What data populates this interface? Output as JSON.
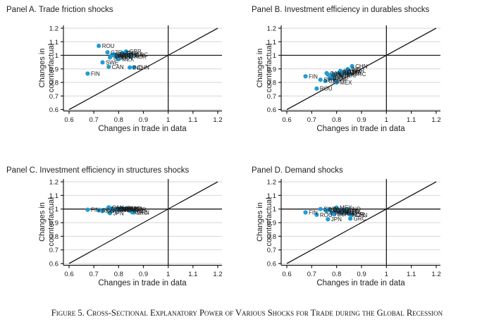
{
  "figure_caption": "Figure 5. Cross-Sectional Explanatory Power of Various Shocks for Trade during the Global Recession",
  "axis_labels": {
    "xlabel": "Changes in trade in data",
    "ylabel_line1": "Changes in",
    "ylabel_line2": "counterfactual"
  },
  "colors": {
    "marker": "#239CD3",
    "grid": "#d6d6d6",
    "axis": "#1a1a1a"
  },
  "chart_data": [
    {
      "type": "scatter",
      "title": "Panel A. Trade friction shocks",
      "xlabel": "Changes in trade in data",
      "ylabel": "Changes in counterfactual",
      "xlim": [
        0.6,
        1.2
      ],
      "ylim": [
        0.6,
        1.2
      ],
      "xticks": [
        0.6,
        0.7,
        0.8,
        0.9,
        1,
        1.1,
        1.2
      ],
      "yticks": [
        0.6,
        0.7,
        0.8,
        0.9,
        1,
        1.1,
        1.2
      ],
      "reference_lines": {
        "horizontal_y": 1,
        "vertical_x": 1,
        "diagonal": "45-degree"
      },
      "points": [
        {
          "label": "FIN",
          "x": 0.675,
          "y": 0.865
        },
        {
          "label": "ROU",
          "x": 0.72,
          "y": 1.07
        },
        {
          "label": "SWE",
          "x": 0.735,
          "y": 0.948
        },
        {
          "label": "CZE",
          "x": 0.755,
          "y": 1.022
        },
        {
          "label": "CAN",
          "x": 0.76,
          "y": 0.915
        },
        {
          "label": "JPN",
          "x": 0.765,
          "y": 0.985
        },
        {
          "label": "DNK",
          "x": 0.772,
          "y": 1.0
        },
        {
          "label": "ITA",
          "x": 0.78,
          "y": 1.008
        },
        {
          "label": "HUN",
          "x": 0.785,
          "y": 0.995
        },
        {
          "label": "ESP",
          "x": 0.79,
          "y": 1.002
        },
        {
          "label": "FRA",
          "x": 0.795,
          "y": 0.982
        },
        {
          "label": "MEX",
          "x": 0.8,
          "y": 0.972
        },
        {
          "label": "DEU",
          "x": 0.81,
          "y": 1.0
        },
        {
          "label": "IRL",
          "x": 0.815,
          "y": 1.018
        },
        {
          "label": "POL",
          "x": 0.82,
          "y": 1.012
        },
        {
          "label": "AUT",
          "x": 0.825,
          "y": 1.0
        },
        {
          "label": "GBR",
          "x": 0.83,
          "y": 1.028
        },
        {
          "label": "USA",
          "x": 0.84,
          "y": 1.0
        },
        {
          "label": "IND",
          "x": 0.845,
          "y": 0.91
        },
        {
          "label": "KOR",
          "x": 0.85,
          "y": 0.99
        },
        {
          "label": "GRC",
          "x": 0.855,
          "y": 1.005
        },
        {
          "label": "CHN",
          "x": 0.862,
          "y": 0.912
        }
      ]
    },
    {
      "type": "scatter",
      "title": "Panel B. Investment efficiency in durables shocks",
      "xlabel": "Changes in trade in data",
      "ylabel": "Changes in counterfactual",
      "xlim": [
        0.6,
        1.2
      ],
      "ylim": [
        0.6,
        1.2
      ],
      "xticks": [
        0.6,
        0.7,
        0.8,
        0.9,
        1,
        1.1,
        1.2
      ],
      "yticks": [
        0.6,
        0.7,
        0.8,
        0.9,
        1,
        1.1,
        1.2
      ],
      "reference_lines": {
        "horizontal_y": 1,
        "vertical_x": 1,
        "diagonal": "45-degree"
      },
      "points": [
        {
          "label": "FIN",
          "x": 0.675,
          "y": 0.845
        },
        {
          "label": "ROU",
          "x": 0.72,
          "y": 0.755
        },
        {
          "label": "SWE",
          "x": 0.735,
          "y": 0.82
        },
        {
          "label": "CZE",
          "x": 0.755,
          "y": 0.81
        },
        {
          "label": "CAN",
          "x": 0.76,
          "y": 0.868
        },
        {
          "label": "JPN",
          "x": 0.765,
          "y": 0.858
        },
        {
          "label": "DNK",
          "x": 0.772,
          "y": 0.83
        },
        {
          "label": "ITA",
          "x": 0.78,
          "y": 0.842
        },
        {
          "label": "HUN",
          "x": 0.785,
          "y": 0.862
        },
        {
          "label": "ESP",
          "x": 0.79,
          "y": 0.825
        },
        {
          "label": "FRA",
          "x": 0.795,
          "y": 0.85
        },
        {
          "label": "MEX",
          "x": 0.8,
          "y": 0.8
        },
        {
          "label": "DEU",
          "x": 0.81,
          "y": 0.872
        },
        {
          "label": "IRL",
          "x": 0.815,
          "y": 0.885
        },
        {
          "label": "POL",
          "x": 0.82,
          "y": 0.855
        },
        {
          "label": "AUT",
          "x": 0.825,
          "y": 0.868
        },
        {
          "label": "GBR",
          "x": 0.83,
          "y": 0.878
        },
        {
          "label": "USA",
          "x": 0.84,
          "y": 0.875
        },
        {
          "label": "IND",
          "x": 0.845,
          "y": 0.898
        },
        {
          "label": "KOR",
          "x": 0.85,
          "y": 0.888
        },
        {
          "label": "GRC",
          "x": 0.855,
          "y": 0.862
        },
        {
          "label": "CHN",
          "x": 0.862,
          "y": 0.92
        }
      ]
    },
    {
      "type": "scatter",
      "title": "Panel C. Investment efficiency in structures shocks",
      "xlabel": "Changes in trade in data",
      "ylabel": "Changes in counterfactual",
      "xlim": [
        0.6,
        1.2
      ],
      "ylim": [
        0.6,
        1.2
      ],
      "xticks": [
        0.6,
        0.7,
        0.8,
        0.9,
        1,
        1.1,
        1.2
      ],
      "yticks": [
        0.6,
        0.7,
        0.8,
        0.9,
        1,
        1.1,
        1.2
      ],
      "reference_lines": {
        "horizontal_y": 1,
        "vertical_x": 1,
        "diagonal": "45-degree"
      },
      "points": [
        {
          "label": "FIN",
          "x": 0.675,
          "y": 0.995
        },
        {
          "label": "ROU",
          "x": 0.72,
          "y": 0.99
        },
        {
          "label": "SWE",
          "x": 0.735,
          "y": 0.985
        },
        {
          "label": "CZE",
          "x": 0.755,
          "y": 1.0
        },
        {
          "label": "CAN",
          "x": 0.76,
          "y": 1.012
        },
        {
          "label": "JPN",
          "x": 0.765,
          "y": 0.97
        },
        {
          "label": "DNK",
          "x": 0.772,
          "y": 1.002
        },
        {
          "label": "ITA",
          "x": 0.78,
          "y": 0.995
        },
        {
          "label": "HUN",
          "x": 0.785,
          "y": 1.0
        },
        {
          "label": "ESP",
          "x": 0.79,
          "y": 0.998
        },
        {
          "label": "FRA",
          "x": 0.795,
          "y": 1.0
        },
        {
          "label": "MEX",
          "x": 0.8,
          "y": 0.993
        },
        {
          "label": "DEU",
          "x": 0.81,
          "y": 1.0
        },
        {
          "label": "IRL",
          "x": 0.815,
          "y": 1.005
        },
        {
          "label": "POL",
          "x": 0.82,
          "y": 1.0
        },
        {
          "label": "AUT",
          "x": 0.825,
          "y": 0.998
        },
        {
          "label": "GBR",
          "x": 0.83,
          "y": 1.004
        },
        {
          "label": "USA",
          "x": 0.84,
          "y": 1.0
        },
        {
          "label": "IND",
          "x": 0.845,
          "y": 0.988
        },
        {
          "label": "KOR",
          "x": 0.85,
          "y": 0.995
        },
        {
          "label": "GRC",
          "x": 0.855,
          "y": 0.976
        },
        {
          "label": "CHN",
          "x": 0.862,
          "y": 0.975
        }
      ]
    },
    {
      "type": "scatter",
      "title": "Panel D. Demand shocks",
      "xlabel": "Changes in trade in data",
      "ylabel": "Changes in counterfactual",
      "xlim": [
        0.6,
        1.2
      ],
      "ylim": [
        0.6,
        1.2
      ],
      "xticks": [
        0.6,
        0.7,
        0.8,
        0.9,
        1,
        1.1,
        1.2
      ],
      "yticks": [
        0.6,
        0.7,
        0.8,
        0.9,
        1,
        1.1,
        1.2
      ],
      "reference_lines": {
        "horizontal_y": 1,
        "vertical_x": 1,
        "diagonal": "45-degree"
      },
      "points": [
        {
          "label": "FIN",
          "x": 0.675,
          "y": 0.975
        },
        {
          "label": "ROU",
          "x": 0.72,
          "y": 0.958
        },
        {
          "label": "SWE",
          "x": 0.735,
          "y": 1.0
        },
        {
          "label": "CZE",
          "x": 0.755,
          "y": 0.993
        },
        {
          "label": "CAN",
          "x": 0.76,
          "y": 0.985
        },
        {
          "label": "JPN",
          "x": 0.765,
          "y": 0.925
        },
        {
          "label": "DNK",
          "x": 0.772,
          "y": 0.998
        },
        {
          "label": "ITA",
          "x": 0.78,
          "y": 0.968
        },
        {
          "label": "HUN",
          "x": 0.785,
          "y": 0.975
        },
        {
          "label": "ESP",
          "x": 0.79,
          "y": 0.962
        },
        {
          "label": "FRA",
          "x": 0.795,
          "y": 0.985
        },
        {
          "label": "MEX",
          "x": 0.8,
          "y": 1.01
        },
        {
          "label": "DEU",
          "x": 0.81,
          "y": 0.975
        },
        {
          "label": "IRL",
          "x": 0.815,
          "y": 0.992
        },
        {
          "label": "POL",
          "x": 0.82,
          "y": 0.97
        },
        {
          "label": "AUT",
          "x": 0.825,
          "y": 0.982
        },
        {
          "label": "GBR",
          "x": 0.83,
          "y": 0.98
        },
        {
          "label": "USA",
          "x": 0.84,
          "y": 0.976
        },
        {
          "label": "IND",
          "x": 0.845,
          "y": 1.0
        },
        {
          "label": "KOR",
          "x": 0.85,
          "y": 0.962
        },
        {
          "label": "GRC",
          "x": 0.855,
          "y": 0.93
        },
        {
          "label": "CHN",
          "x": 0.862,
          "y": 0.957
        }
      ]
    }
  ]
}
